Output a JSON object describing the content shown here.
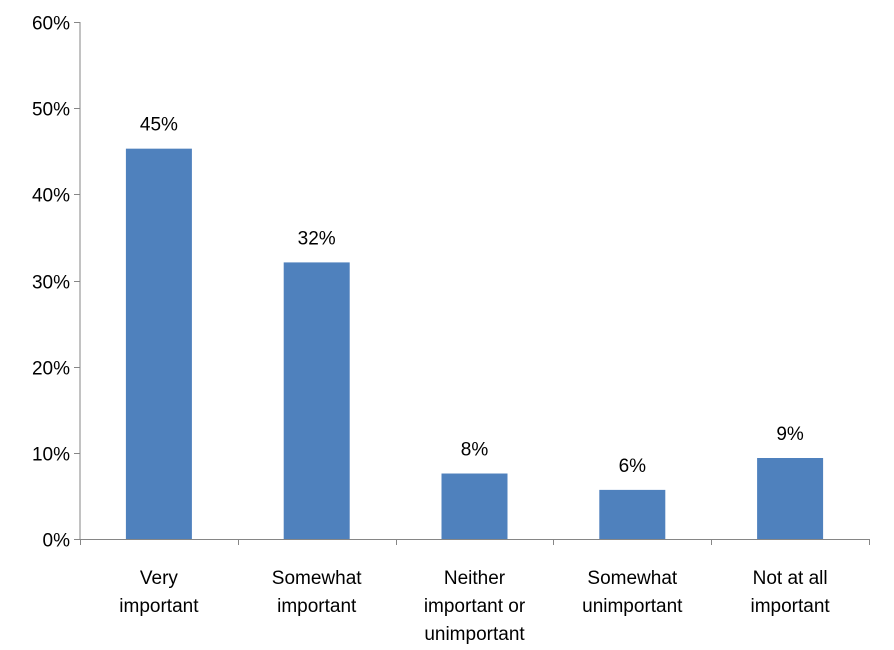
{
  "chart_data": {
    "type": "bar",
    "title": "",
    "xlabel": "",
    "ylabel": "",
    "categories": [
      [
        "Very",
        "important"
      ],
      [
        "Somewhat",
        "important"
      ],
      [
        "Neither",
        "important or",
        "unimportant"
      ],
      [
        "Somewhat",
        "unimportant"
      ],
      [
        "Not at all",
        "important"
      ]
    ],
    "values": [
      45.3,
      32.1,
      7.6,
      5.7,
      9.4
    ],
    "value_labels": [
      "45%",
      "32%",
      "8%",
      "6%",
      "9%"
    ],
    "ylim": [
      0,
      60
    ],
    "yticks": [
      0,
      10,
      20,
      30,
      40,
      50,
      60
    ],
    "ytick_labels": [
      "0%",
      "10%",
      "20%",
      "30%",
      "40%",
      "50%",
      "60%"
    ],
    "grid": false,
    "legend": "none",
    "bar_color": "#4F81BD",
    "axis_color": "#868686"
  }
}
